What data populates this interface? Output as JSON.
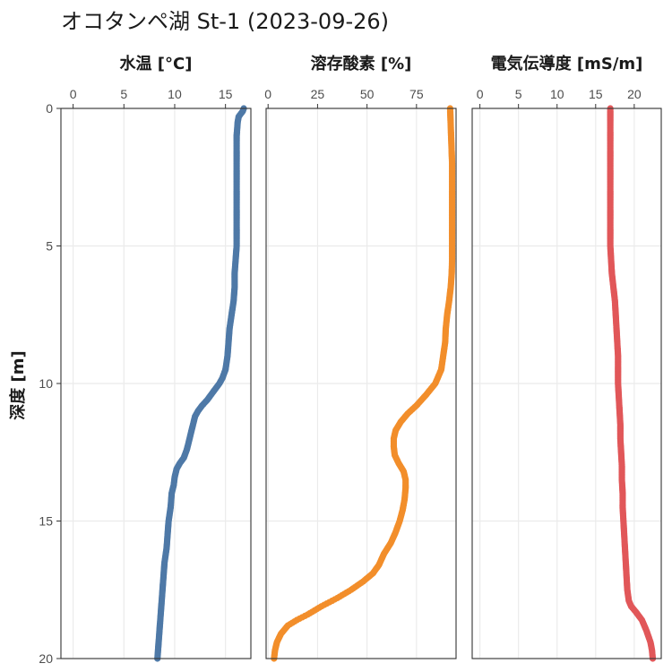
{
  "page": {
    "title": "オコタンペ湖 St-1 (2023-09-26)"
  },
  "chart_data": {
    "type": "scatter",
    "ylabel": "深度 [m]",
    "yticks": [
      0,
      5,
      10,
      15,
      20
    ],
    "ylim": [
      0,
      20
    ],
    "y_reversed": true,
    "grid": true,
    "panels": [
      {
        "name": "水温 [°C]",
        "color": "#4e79a7",
        "xlim": [
          -1.2,
          17.5
        ],
        "xticks": [
          0,
          5,
          10,
          15
        ],
        "points": [
          [
            16.8,
            0.0
          ],
          [
            16.7,
            0.1
          ],
          [
            16.5,
            0.2
          ],
          [
            16.3,
            0.3
          ],
          [
            16.2,
            0.5
          ],
          [
            16.1,
            1.0
          ],
          [
            16.1,
            2.0
          ],
          [
            16.1,
            3.0
          ],
          [
            16.1,
            4.0
          ],
          [
            16.1,
            5.0
          ],
          [
            16.0,
            5.5
          ],
          [
            15.9,
            6.0
          ],
          [
            15.9,
            6.5
          ],
          [
            15.8,
            7.0
          ],
          [
            15.6,
            7.5
          ],
          [
            15.4,
            8.0
          ],
          [
            15.3,
            8.5
          ],
          [
            15.2,
            9.0
          ],
          [
            15.0,
            9.5
          ],
          [
            14.7,
            9.8
          ],
          [
            14.4,
            10.0
          ],
          [
            14.0,
            10.2
          ],
          [
            13.6,
            10.4
          ],
          [
            13.2,
            10.6
          ],
          [
            12.7,
            10.8
          ],
          [
            12.3,
            11.0
          ],
          [
            12.0,
            11.2
          ],
          [
            11.8,
            11.5
          ],
          [
            11.6,
            11.8
          ],
          [
            11.4,
            12.1
          ],
          [
            11.2,
            12.4
          ],
          [
            10.9,
            12.7
          ],
          [
            10.5,
            12.9
          ],
          [
            10.2,
            13.1
          ],
          [
            10.0,
            13.4
          ],
          [
            9.9,
            13.7
          ],
          [
            9.7,
            14.0
          ],
          [
            9.6,
            14.5
          ],
          [
            9.4,
            15.0
          ],
          [
            9.3,
            15.5
          ],
          [
            9.2,
            16.0
          ],
          [
            9.0,
            16.5
          ],
          [
            8.9,
            17.0
          ],
          [
            8.8,
            17.5
          ],
          [
            8.7,
            18.0
          ],
          [
            8.6,
            18.5
          ],
          [
            8.5,
            19.0
          ],
          [
            8.4,
            19.5
          ],
          [
            8.3,
            20.0
          ]
        ]
      },
      {
        "name": "溶存酸素 [%]",
        "color": "#f28e2b",
        "xlim": [
          -1,
          95
        ],
        "xticks": [
          0,
          25,
          50,
          75
        ],
        "points": [
          [
            92.0,
            0.0
          ],
          [
            92.5,
            1.0
          ],
          [
            93.0,
            2.0
          ],
          [
            93.0,
            3.0
          ],
          [
            93.0,
            4.0
          ],
          [
            93.0,
            5.0
          ],
          [
            93.0,
            5.5
          ],
          [
            92.8,
            6.0
          ],
          [
            92.3,
            6.5
          ],
          [
            91.5,
            7.0
          ],
          [
            90.5,
            7.5
          ],
          [
            89.8,
            8.0
          ],
          [
            89.5,
            8.5
          ],
          [
            88.5,
            9.0
          ],
          [
            87.5,
            9.5
          ],
          [
            84.5,
            10.0
          ],
          [
            80.0,
            10.4
          ],
          [
            75.0,
            10.8
          ],
          [
            70.5,
            11.1
          ],
          [
            67.0,
            11.4
          ],
          [
            64.5,
            11.7
          ],
          [
            63.5,
            12.0
          ],
          [
            63.5,
            12.3
          ],
          [
            64.0,
            12.6
          ],
          [
            66.0,
            12.9
          ],
          [
            68.5,
            13.2
          ],
          [
            69.5,
            13.5
          ],
          [
            69.5,
            13.8
          ],
          [
            69.0,
            14.2
          ],
          [
            68.0,
            14.6
          ],
          [
            66.5,
            15.0
          ],
          [
            64.5,
            15.4
          ],
          [
            62.0,
            15.8
          ],
          [
            58.5,
            16.2
          ],
          [
            56.0,
            16.6
          ],
          [
            53.0,
            16.9
          ],
          [
            48.0,
            17.2
          ],
          [
            42.0,
            17.5
          ],
          [
            35.0,
            17.8
          ],
          [
            27.0,
            18.1
          ],
          [
            20.0,
            18.4
          ],
          [
            14.5,
            18.6
          ],
          [
            10.0,
            18.8
          ],
          [
            6.5,
            19.1
          ],
          [
            4.5,
            19.4
          ],
          [
            3.5,
            19.7
          ],
          [
            3.0,
            20.0
          ]
        ]
      },
      {
        "name": "電気伝導度 [mS/m]",
        "color": "#e15759",
        "xlim": [
          -1,
          23.5
        ],
        "xticks": [
          0,
          5,
          10,
          15,
          20
        ],
        "points": [
          [
            16.9,
            0.0
          ],
          [
            16.9,
            1.0
          ],
          [
            16.9,
            2.0
          ],
          [
            16.9,
            3.0
          ],
          [
            16.9,
            4.0
          ],
          [
            16.9,
            5.0
          ],
          [
            17.0,
            5.5
          ],
          [
            17.1,
            6.0
          ],
          [
            17.3,
            6.5
          ],
          [
            17.5,
            7.0
          ],
          [
            17.6,
            7.5
          ],
          [
            17.7,
            8.0
          ],
          [
            17.8,
            8.5
          ],
          [
            17.9,
            9.0
          ],
          [
            17.9,
            9.5
          ],
          [
            17.9,
            10.0
          ],
          [
            18.0,
            10.5
          ],
          [
            18.1,
            11.0
          ],
          [
            18.2,
            11.5
          ],
          [
            18.2,
            12.0
          ],
          [
            18.3,
            12.5
          ],
          [
            18.4,
            13.0
          ],
          [
            18.4,
            13.5
          ],
          [
            18.5,
            14.0
          ],
          [
            18.5,
            14.5
          ],
          [
            18.6,
            15.0
          ],
          [
            18.7,
            15.5
          ],
          [
            18.8,
            16.0
          ],
          [
            18.9,
            16.5
          ],
          [
            19.0,
            17.0
          ],
          [
            19.1,
            17.5
          ],
          [
            19.3,
            17.9
          ],
          [
            19.6,
            18.1
          ],
          [
            20.2,
            18.3
          ],
          [
            21.0,
            18.6
          ],
          [
            21.6,
            19.0
          ],
          [
            22.1,
            19.4
          ],
          [
            22.3,
            19.7
          ],
          [
            22.4,
            20.0
          ]
        ]
      }
    ]
  }
}
